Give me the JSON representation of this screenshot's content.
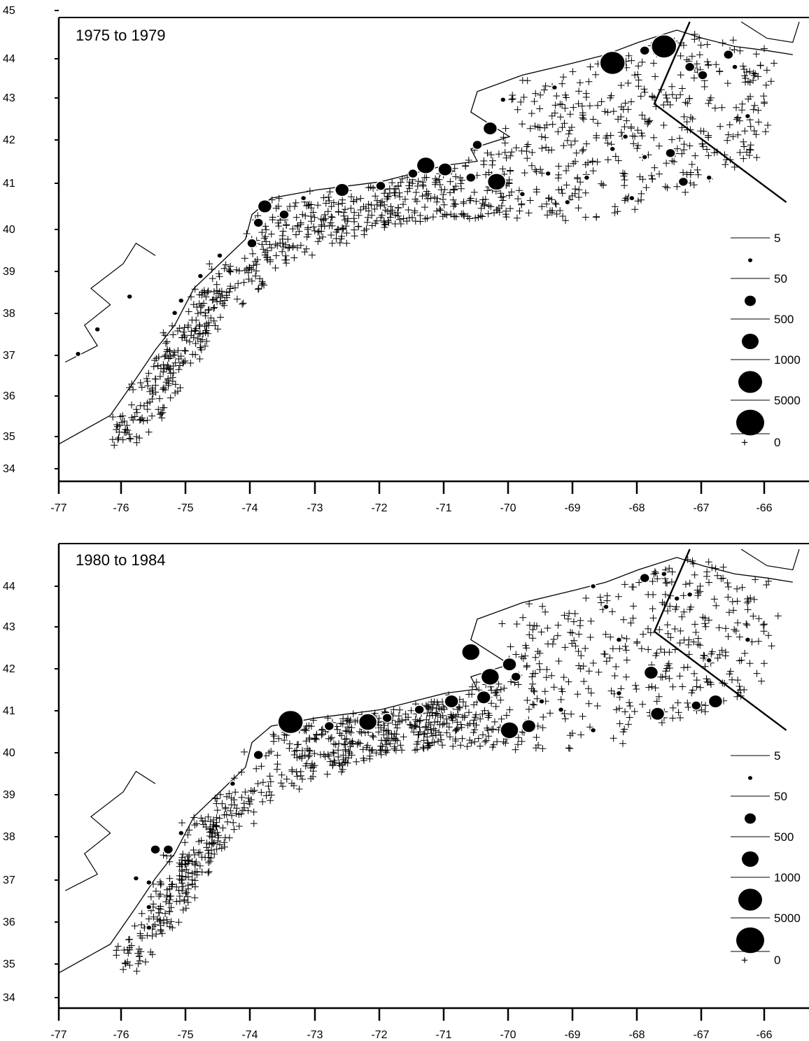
{
  "panels": [
    {
      "title": "1975 to 1979",
      "y_axis_labels": [
        "45",
        "44",
        "43",
        "42",
        "41",
        "40",
        "39",
        "38",
        "37",
        "36",
        "35",
        "34"
      ],
      "x_axis_labels": [
        "-77",
        "-76",
        "-75",
        "-74",
        "-73",
        "-72",
        "-71",
        "-70",
        "-69",
        "-68",
        "-67",
        "-66"
      ],
      "legend": {
        "labels": [
          "5",
          "50",
          "500",
          "1000",
          "5000"
        ],
        "zero_label": "0",
        "zero_symbol": "+"
      },
      "catches": [
        {
          "lon": -76.7,
          "lat": 36.8,
          "size": 1
        },
        {
          "lon": -76.4,
          "lat": 37.4,
          "size": 1
        },
        {
          "lon": -75.9,
          "lat": 38.2,
          "size": 1
        },
        {
          "lon": -75.2,
          "lat": 37.8,
          "size": 1
        },
        {
          "lon": -75.1,
          "lat": 38.1,
          "size": 1
        },
        {
          "lon": -74.8,
          "lat": 38.7,
          "size": 1
        },
        {
          "lon": -74.5,
          "lat": 39.2,
          "size": 1
        },
        {
          "lon": -74.0,
          "lat": 39.5,
          "size": 2
        },
        {
          "lon": -73.9,
          "lat": 40.0,
          "size": 2
        },
        {
          "lon": -73.8,
          "lat": 40.4,
          "size": 3
        },
        {
          "lon": -73.5,
          "lat": 40.2,
          "size": 2
        },
        {
          "lon": -73.2,
          "lat": 40.6,
          "size": 1
        },
        {
          "lon": -72.6,
          "lat": 40.8,
          "size": 3
        },
        {
          "lon": -72.0,
          "lat": 40.9,
          "size": 2
        },
        {
          "lon": -71.5,
          "lat": 41.2,
          "size": 2
        },
        {
          "lon": -71.3,
          "lat": 41.4,
          "size": 4
        },
        {
          "lon": -71.0,
          "lat": 41.3,
          "size": 3
        },
        {
          "lon": -70.6,
          "lat": 41.1,
          "size": 2
        },
        {
          "lon": -70.2,
          "lat": 41.0,
          "size": 4
        },
        {
          "lon": -70.3,
          "lat": 42.3,
          "size": 3
        },
        {
          "lon": -70.5,
          "lat": 41.9,
          "size": 2
        },
        {
          "lon": -69.8,
          "lat": 40.7,
          "size": 1
        },
        {
          "lon": -69.4,
          "lat": 41.2,
          "size": 1
        },
        {
          "lon": -69.1,
          "lat": 40.5,
          "size": 1
        },
        {
          "lon": -68.8,
          "lat": 41.1,
          "size": 1
        },
        {
          "lon": -68.4,
          "lat": 41.8,
          "size": 1
        },
        {
          "lon": -68.2,
          "lat": 42.1,
          "size": 1
        },
        {
          "lon": -67.9,
          "lat": 41.6,
          "size": 1
        },
        {
          "lon": -67.5,
          "lat": 41.7,
          "size": 2
        },
        {
          "lon": -67.3,
          "lat": 41.0,
          "size": 2
        },
        {
          "lon": -68.4,
          "lat": 43.9,
          "size": 5
        },
        {
          "lon": -67.6,
          "lat": 44.3,
          "size": 5
        },
        {
          "lon": -67.9,
          "lat": 44.2,
          "size": 2
        },
        {
          "lon": -67.2,
          "lat": 43.8,
          "size": 2
        },
        {
          "lon": -66.6,
          "lat": 44.1,
          "size": 2
        },
        {
          "lon": -66.5,
          "lat": 43.8,
          "size": 1
        },
        {
          "lon": -67.0,
          "lat": 43.6,
          "size": 2
        },
        {
          "lon": -69.3,
          "lat": 43.3,
          "size": 1
        },
        {
          "lon": -70.1,
          "lat": 43.0,
          "size": 1
        },
        {
          "lon": -66.9,
          "lat": 41.1,
          "size": 1
        },
        {
          "lon": -68.1,
          "lat": 40.6,
          "size": 1
        },
        {
          "lon": -66.3,
          "lat": 42.6,
          "size": 1
        }
      ]
    },
    {
      "title": "1980 to 1984",
      "y_axis_labels": [
        "44",
        "43",
        "42",
        "41",
        "40",
        "39",
        "38",
        "37",
        "36",
        "35",
        "34"
      ],
      "x_axis_labels": [
        "-77",
        "-76",
        "-75",
        "-74",
        "-73",
        "-72",
        "-71",
        "-70",
        "-69",
        "-68",
        "-67",
        "-66"
      ],
      "legend": {
        "labels": [
          "5",
          "50",
          "500",
          "1000",
          "5000"
        ],
        "zero_label": "0",
        "zero_symbol": "+"
      },
      "catches": [
        {
          "lon": -75.8,
          "lat": 36.9,
          "size": 1
        },
        {
          "lon": -75.6,
          "lat": 36.8,
          "size": 1
        },
        {
          "lon": -75.5,
          "lat": 37.6,
          "size": 2
        },
        {
          "lon": -75.3,
          "lat": 37.6,
          "size": 2
        },
        {
          "lon": -75.1,
          "lat": 38.0,
          "size": 1
        },
        {
          "lon": -75.6,
          "lat": 35.7,
          "size": 1
        },
        {
          "lon": -75.6,
          "lat": 36.2,
          "size": 1
        },
        {
          "lon": -74.3,
          "lat": 39.2,
          "size": 1
        },
        {
          "lon": -73.9,
          "lat": 39.9,
          "size": 2
        },
        {
          "lon": -73.4,
          "lat": 40.7,
          "size": 5
        },
        {
          "lon": -72.8,
          "lat": 40.6,
          "size": 2
        },
        {
          "lon": -72.2,
          "lat": 40.7,
          "size": 4
        },
        {
          "lon": -71.9,
          "lat": 40.8,
          "size": 2
        },
        {
          "lon": -71.4,
          "lat": 41.0,
          "size": 2
        },
        {
          "lon": -70.9,
          "lat": 41.2,
          "size": 3
        },
        {
          "lon": -70.4,
          "lat": 41.3,
          "size": 3
        },
        {
          "lon": -70.0,
          "lat": 40.5,
          "size": 4
        },
        {
          "lon": -69.7,
          "lat": 40.6,
          "size": 3
        },
        {
          "lon": -70.6,
          "lat": 42.4,
          "size": 4
        },
        {
          "lon": -70.3,
          "lat": 41.8,
          "size": 4
        },
        {
          "lon": -70.0,
          "lat": 42.1,
          "size": 3
        },
        {
          "lon": -69.9,
          "lat": 41.8,
          "size": 2
        },
        {
          "lon": -69.5,
          "lat": 41.2,
          "size": 1
        },
        {
          "lon": -69.2,
          "lat": 41.0,
          "size": 1
        },
        {
          "lon": -68.7,
          "lat": 40.5,
          "size": 1
        },
        {
          "lon": -68.3,
          "lat": 41.4,
          "size": 1
        },
        {
          "lon": -67.8,
          "lat": 41.9,
          "size": 3
        },
        {
          "lon": -67.7,
          "lat": 40.9,
          "size": 3
        },
        {
          "lon": -67.1,
          "lat": 41.1,
          "size": 2
        },
        {
          "lon": -66.8,
          "lat": 41.2,
          "size": 3
        },
        {
          "lon": -68.7,
          "lat": 44.0,
          "size": 1
        },
        {
          "lon": -67.9,
          "lat": 44.2,
          "size": 2
        },
        {
          "lon": -67.6,
          "lat": 44.3,
          "size": 1
        },
        {
          "lon": -67.2,
          "lat": 43.8,
          "size": 1
        },
        {
          "lon": -68.5,
          "lat": 43.5,
          "size": 1
        },
        {
          "lon": -66.3,
          "lat": 42.7,
          "size": 1
        },
        {
          "lon": -67.4,
          "lat": 43.7,
          "size": 1
        },
        {
          "lon": -68.3,
          "lat": 42.7,
          "size": 1
        },
        {
          "lon": -66.9,
          "lat": 42.2,
          "size": 1
        }
      ]
    }
  ]
}
